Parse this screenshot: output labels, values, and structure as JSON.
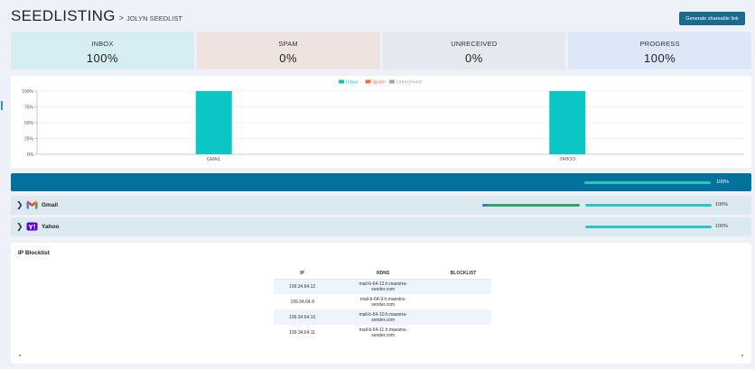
{
  "header": {
    "title": "SEEDLISTING",
    "separator": ">",
    "breadcrumb": "JOLYN SEEDLIST",
    "share_button": "Generate shareable link"
  },
  "stats": [
    {
      "label": "INBOX",
      "value": "100%",
      "bg": "#d6eef1"
    },
    {
      "label": "SPAM",
      "value": "0%",
      "bg": "#efe3e1"
    },
    {
      "label": "UNRECEIVED",
      "value": "0%",
      "bg": "#e5e9ee"
    },
    {
      "label": "PROGRESS",
      "value": "100%",
      "bg": "#dde7f7"
    }
  ],
  "chart_data": {
    "type": "bar",
    "categories": [
      "GMAIL",
      "YAHOO"
    ],
    "series": [
      {
        "name": "Inbox",
        "values": [
          100,
          100
        ],
        "color": "#0cc5c5"
      },
      {
        "name": "Spam",
        "values": [
          0,
          0
        ],
        "color": "#f2694c"
      },
      {
        "name": "Unreceived",
        "values": [
          0,
          0
        ],
        "color": "#a5a3c4"
      }
    ],
    "yticks": [
      "0%",
      "25%",
      "50%",
      "75%",
      "100%"
    ],
    "ylim": [
      0,
      100
    ],
    "grid": true,
    "legend_position": "top-center"
  },
  "overall": {
    "progress": 1.0,
    "label": "100%"
  },
  "providers": [
    {
      "name": "Gmail",
      "icon": "gmail-icon",
      "progress": 1.0,
      "label": "100%",
      "inbox_share": 1.0
    },
    {
      "name": "Yahoo",
      "icon": "yahoo-icon",
      "progress": 1.0,
      "label": "100%"
    }
  ],
  "ip_blocklist": {
    "title": "IP Blocklist",
    "columns": [
      "IP",
      "RDNS",
      "BLOCKLIST"
    ],
    "rows": [
      {
        "ip": "199.34.64.12",
        "rdns": [
          "mail-b-64-12.h.maestra-",
          "sender.com"
        ],
        "blocklist": ""
      },
      {
        "ip": "199.34.64.9",
        "rdns": [
          "mail-b-64-9.h.maestra-",
          "sender.com"
        ],
        "blocklist": ""
      },
      {
        "ip": "199.34.64.10",
        "rdns": [
          "mail-b-64-10.h.maestra-",
          "sender.com"
        ],
        "blocklist": ""
      },
      {
        "ip": "199.34.64.11",
        "rdns": [
          "mail-b-64-11.h.maestra-",
          "sender.com"
        ],
        "blocklist": ""
      }
    ]
  }
}
